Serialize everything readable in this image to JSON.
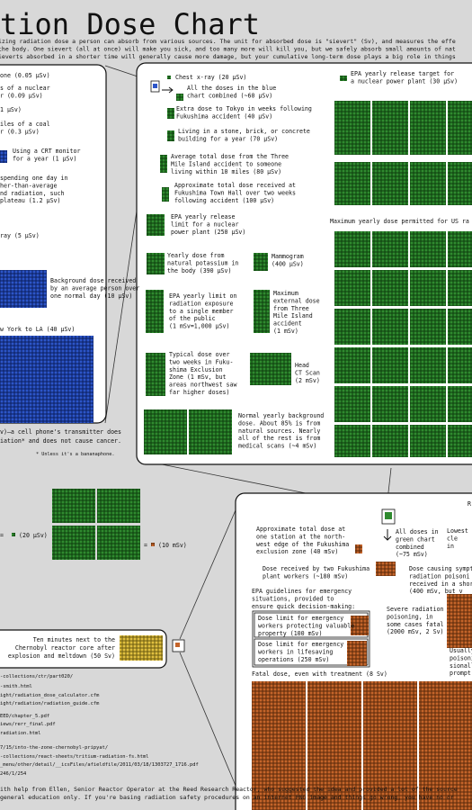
{
  "header": {
    "title": "tion Dose Chart",
    "intro": [
      "izing radiation dose a person can absorb from various sources. The unit for absorbed dose is \"sievert\" (Sv), and measures the effe",
      "the body. One sievert (all at once) will make you sick, and too many more will kill you, but we safely absorb small amounts of nat",
      "ieverts absorbed in a shorter time will generally cause more damage, but your cumulative long-term dose plays a big role in things"
    ]
  },
  "blue_panel": {
    "items": [
      {
        "lines": [
          "one (0.05 µSv)"
        ]
      },
      {
        "lines": [
          "s of a nuclear",
          "r (0.09 µSv)"
        ]
      },
      {
        "lines": [
          "1 µSv)"
        ]
      },
      {
        "lines": [
          "iles of a coal",
          "r (0.3 µSv)"
        ]
      },
      {
        "lines": [
          "Using a CRT monitor",
          "for a year (1 µSv)"
        ]
      },
      {
        "lines": [
          "spending one day in",
          "her-than-average",
          "nd radiation, such",
          "plateau (1.2 µSv)"
        ]
      },
      {
        "lines": [
          "ray (5 µSv)"
        ]
      },
      {
        "lines": [
          "Background dose received",
          "by an average person over",
          "one normal day (10 µSv)"
        ]
      },
      {
        "lines": [
          "w York to LA (40 µSv)"
        ]
      }
    ],
    "note": [
      "v)—a cell phone's transmitter does",
      "iation* and does not cause cancer."
    ],
    "footnote": "* Unless it's a bananaphone."
  },
  "green_panel": {
    "items": [
      {
        "lines": [
          "Chest x-ray (20 µSv)"
        ]
      },
      {
        "lines": [
          "All the doses in the blue",
          "chart combined (~60 µSv)"
        ]
      },
      {
        "lines": [
          "EPA yearly release target for",
          "a nuclear power plant (30 µSv)"
        ]
      },
      {
        "lines": [
          "Extra dose to Tokyo in weeks following",
          "Fukushima accident (40 µSv)"
        ]
      },
      {
        "lines": [
          "Living in a stone, brick, or concrete",
          "building for a year (70 µSv)"
        ]
      },
      {
        "lines": [
          "Average total dose from the Three",
          "Mile Island accident to someone",
          "living within 10 miles (80 µSv)"
        ]
      },
      {
        "lines": [
          "Approximate total dose received at",
          "Fukushima Town Hall over two weeks",
          "following accident (100 µSv)"
        ]
      },
      {
        "lines": [
          "EPA yearly release",
          "limit for a nuclear",
          "power plant (250 µSv)"
        ]
      },
      {
        "lines": [
          "Maximum yearly dose permitted for US ra"
        ]
      },
      {
        "lines": [
          "Yearly dose from",
          "natural potassium in",
          "the body (390 µSv)"
        ]
      },
      {
        "lines": [
          "Mammogram",
          "(400 µSv)"
        ]
      },
      {
        "lines": [
          "EPA yearly limit on",
          "radiation exposure",
          "to a single member",
          "of the public",
          "(1 mSv=1,000 µSv)"
        ]
      },
      {
        "lines": [
          "Maximum",
          "external dose",
          "from Three",
          "Mile Island",
          "accident",
          "(1 mSv)"
        ]
      },
      {
        "lines": [
          "Typical dose over",
          "two weeks in Fuku-",
          "shima Exclusion",
          "Zone (1 mSv, but",
          "areas northwest saw",
          "far higher doses)"
        ]
      },
      {
        "lines": [
          "Head",
          "CT Scan",
          "(2 mSv)"
        ]
      },
      {
        "lines": [
          "Normal yearly background",
          "dose. About 85% is from",
          "natural sources. Nearly",
          "all of the rest is from",
          "medical scans (~4 mSv)"
        ]
      }
    ]
  },
  "orange_panel": {
    "items": [
      {
        "lines": [
          "R"
        ]
      },
      {
        "lines": [
          "Approximate total dose at",
          "one station at the north-",
          "west edge of the Fukushima",
          "exclusion zone (40 mSv)"
        ]
      },
      {
        "lines": [
          "All doses in",
          "green chart",
          "combined",
          "(~75 mSv)"
        ]
      },
      {
        "lines": [
          "Lowest",
          "cle",
          "in"
        ]
      },
      {
        "lines": [
          "Dose received by two Fukushima",
          "plant workers (~180 mSv)"
        ]
      },
      {
        "lines": [
          "Dose causing sympt",
          "radiation poisoni",
          "received in a shor",
          "(400 mSv, but v"
        ]
      },
      {
        "lines": [
          "EPA guidelines for emergency",
          "situations, provided to",
          "ensure quick decision-making:"
        ]
      },
      {
        "lines": [
          "Severe radiation",
          "poisoning, in",
          "some cases fatal",
          "(2000 mSv, 2 Sv)"
        ]
      },
      {
        "lines": [
          "Dose limit for emergency",
          "workers protecting valuable",
          "property (100 mSv)"
        ]
      },
      {
        "lines": [
          "Dose limit for emergency",
          "workers in lifesaving",
          "operations (250 mSv)"
        ]
      },
      {
        "lines": [
          "Usually",
          "poisoni",
          "sionall",
          "prompt"
        ]
      },
      {
        "lines": [
          "Fatal dose, even with treatment (8 Sv)"
        ]
      }
    ]
  },
  "legend": {
    "equals": "=",
    "green_square": "(20 µSv)",
    "orange_square": "(10 mSv)"
  },
  "chernobyl": {
    "lines": [
      "Ten minutes next to the",
      "Chernobyl reactor core after",
      "explosion and meltdown (50 Sv)"
    ]
  },
  "sources": [
    "-collections/ctr/part020/",
    "-smith.html",
    "ight/radiation_dose_calculator.cfm",
    "ight/radiation/radiation_guide.cfm",
    "EED/chapter_5.pdf",
    "iews/rerr_final.pdf",
    "radiation.html",
    "7/15/into-the-zone-chernobyl-pripyat/",
    "-collections/react-sheets/tritium-radiation-fs.html",
    "_menu/other/detail/__icsFiles/afieldfile/2011/03/18/1303727_1716.pdf",
    "246/1/254"
  ],
  "footer": [
    "ith help from Ellen, Senior Reactor Operator at the Reed Research Reactor, who suggested the idea and provided a lot of the source",
    "general education only. If you're basing radiation safety procedures on an internet PNG image and things go wrong, you have no or"
  ]
}
